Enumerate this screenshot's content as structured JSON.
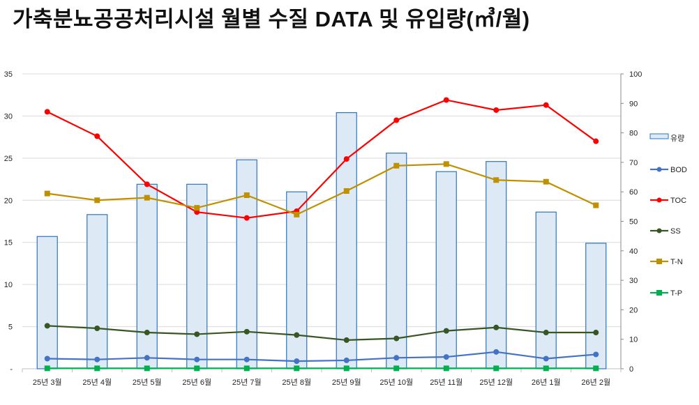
{
  "chart_data": {
    "title": "가축분뇨공공처리시설 월별 수질 DATA 및 유입량(㎥/월)",
    "type": "bar+line",
    "categories": [
      "25년 3월",
      "25년 4월",
      "25년 5월",
      "25년 6월",
      "25년 7월",
      "25년 8월",
      "25년 9월",
      "25년 10월",
      "25년 11월",
      "25년 12월",
      "26년 1월",
      "26년 2월"
    ],
    "left_axis": {
      "ylim": [
        0,
        35
      ],
      "ticks": [
        "-",
        "5",
        "10",
        "15",
        "20",
        "25",
        "30",
        "35"
      ]
    },
    "right_axis": {
      "ylim": [
        0,
        100
      ],
      "ticks": [
        "0",
        "10",
        "20",
        "30",
        "40",
        "50",
        "60",
        "70",
        "80",
        "90",
        "100"
      ]
    },
    "grid": true,
    "legend_position": "right",
    "series": [
      {
        "name": "유량",
        "kind": "bar",
        "color": "#2e75b6",
        "fill": "#ddeaf6",
        "values": [
          15.7,
          18.3,
          21.9,
          21.9,
          24.8,
          21.0,
          30.4,
          25.6,
          23.4,
          24.6,
          18.6,
          14.9
        ]
      },
      {
        "name": "BOD",
        "kind": "line",
        "marker": "circle",
        "color": "#4472c4",
        "values": [
          1.2,
          1.1,
          1.3,
          1.1,
          1.1,
          0.9,
          1.0,
          1.3,
          1.4,
          2.0,
          1.2,
          1.7
        ]
      },
      {
        "name": "TOC",
        "kind": "line",
        "marker": "circle",
        "color": "#ff0000",
        "values": [
          30.5,
          27.6,
          21.9,
          18.6,
          17.9,
          18.7,
          24.9,
          29.5,
          31.9,
          30.7,
          31.3,
          27.0
        ]
      },
      {
        "name": "SS",
        "kind": "line",
        "marker": "circle",
        "color": "#375623",
        "values": [
          5.1,
          4.8,
          4.3,
          4.1,
          4.4,
          4.0,
          3.4,
          3.6,
          4.5,
          4.9,
          4.3,
          4.3
        ]
      },
      {
        "name": "T-N",
        "kind": "line",
        "marker": "square",
        "color": "#bf9000",
        "values": [
          20.8,
          20.0,
          20.3,
          19.1,
          20.6,
          18.3,
          21.1,
          24.1,
          24.3,
          22.4,
          22.2,
          19.4
        ]
      },
      {
        "name": "T-P",
        "kind": "line",
        "marker": "square",
        "color": "#00b050",
        "values": [
          0.05,
          0.05,
          0.05,
          0.05,
          0.05,
          0.05,
          0.05,
          0.05,
          0.05,
          0.05,
          0.05,
          0.05
        ]
      }
    ]
  }
}
